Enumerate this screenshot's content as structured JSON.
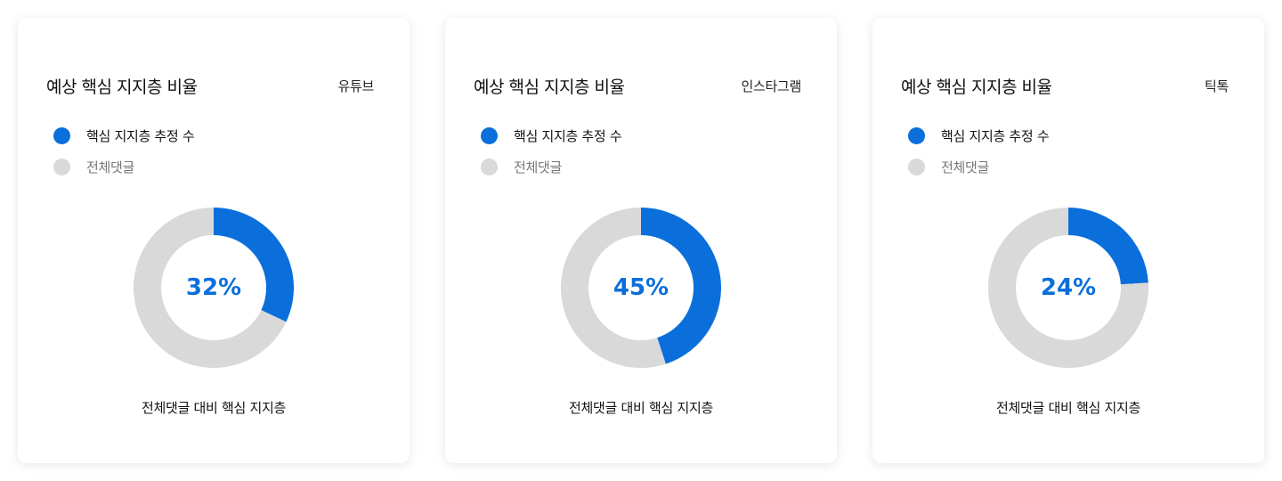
{
  "colors": {
    "core": "#0a6fdb",
    "total": "#d9d9d9",
    "card_bg": "#ffffff"
  },
  "chart_data": [
    {
      "type": "pie",
      "title": "예상 핵심 지지층 비율",
      "platform": "유튜브",
      "legend": [
        "핵심 지지층 추정 수",
        "전체댓글"
      ],
      "values": [
        32,
        68
      ],
      "center_label": "32%",
      "caption": "전체댓글 대비 핵심 지지층"
    },
    {
      "type": "pie",
      "title": "예상 핵심 지지층 비율",
      "platform": "인스타그램",
      "legend": [
        "핵심 지지층 추정 수",
        "전체댓글"
      ],
      "values": [
        45,
        55
      ],
      "center_label": "45%",
      "caption": "전체댓글 대비 핵심 지지층"
    },
    {
      "type": "pie",
      "title": "예상 핵심 지지층 비율",
      "platform": "틱톡",
      "legend": [
        "핵심 지지층 추정 수",
        "전체댓글"
      ],
      "values": [
        24,
        76
      ],
      "center_label": "24%",
      "caption": "전체댓글 대비 핵심 지지층"
    }
  ]
}
